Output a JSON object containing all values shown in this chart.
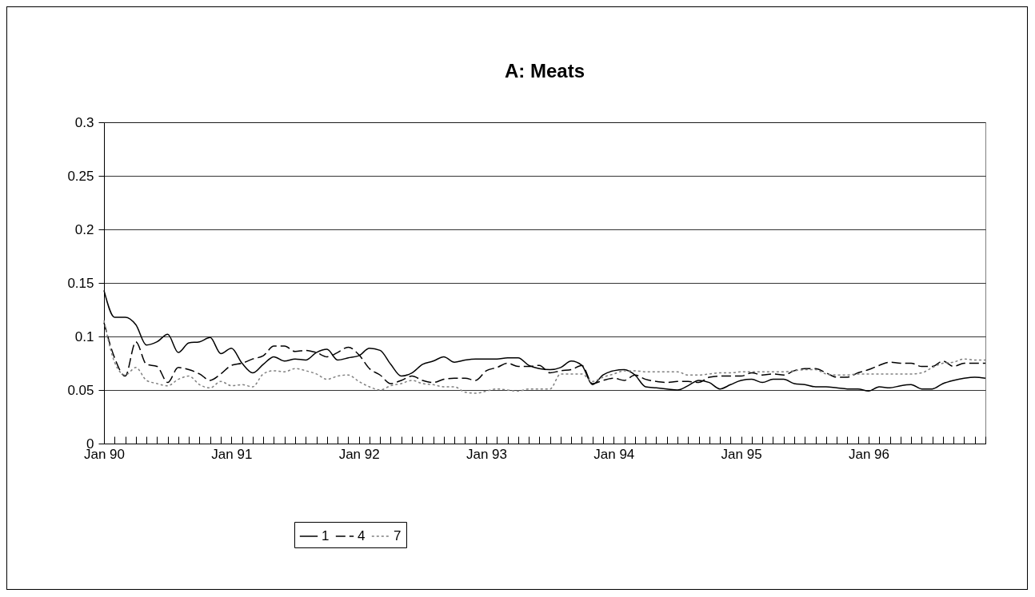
{
  "chart_data": {
    "type": "line",
    "title": "A:  Meats",
    "categories": [
      "Jan 90",
      null,
      null,
      null,
      null,
      null,
      null,
      null,
      null,
      null,
      null,
      null,
      "Jan 91",
      null,
      null,
      null,
      null,
      null,
      null,
      null,
      null,
      null,
      null,
      null,
      "Jan 92",
      null,
      null,
      null,
      null,
      null,
      null,
      null,
      null,
      null,
      null,
      null,
      "Jan 93",
      null,
      null,
      null,
      null,
      null,
      null,
      null,
      null,
      null,
      null,
      null,
      "Jan 94",
      null,
      null,
      null,
      null,
      null,
      null,
      null,
      null,
      null,
      null,
      null,
      "Jan 95",
      null,
      null,
      null,
      null,
      null,
      null,
      null,
      null,
      null,
      null,
      null,
      "Jan 96",
      null,
      null,
      null,
      null,
      null,
      null,
      null,
      null,
      null,
      null,
      null
    ],
    "series": [
      {
        "name": "1",
        "color": "#000000",
        "line_style": "solid",
        "values": [
          0.143,
          0.118,
          0.118,
          0.111,
          0.092,
          0.095,
          0.102,
          0.085,
          0.094,
          0.095,
          0.099,
          0.084,
          0.089,
          0.075,
          0.066,
          0.074,
          0.081,
          0.077,
          0.079,
          0.078,
          0.085,
          0.088,
          0.078,
          0.08,
          0.082,
          0.089,
          0.087,
          0.074,
          0.063,
          0.066,
          0.074,
          0.077,
          0.081,
          0.076,
          0.078,
          0.079,
          0.079,
          0.079,
          0.08,
          0.08,
          0.073,
          0.07,
          0.069,
          0.071,
          0.077,
          0.073,
          0.055,
          0.064,
          0.068,
          0.069,
          0.064,
          0.053,
          0.052,
          0.051,
          0.05,
          0.054,
          0.059,
          0.057,
          0.051,
          0.055,
          0.059,
          0.06,
          0.057,
          0.06,
          0.06,
          0.056,
          0.055,
          0.053,
          0.053,
          0.052,
          0.051,
          0.051,
          0.049,
          0.053,
          0.052,
          0.054,
          0.055,
          0.051,
          0.051,
          0.056,
          0.059,
          0.061,
          0.062,
          0.061
        ]
      },
      {
        "name": "4",
        "color": "#000000",
        "line_style": "dashed",
        "values": [
          0.113,
          0.08,
          0.063,
          0.095,
          0.074,
          0.072,
          0.057,
          0.071,
          0.069,
          0.065,
          0.059,
          0.065,
          0.073,
          0.075,
          0.079,
          0.082,
          0.091,
          0.091,
          0.086,
          0.087,
          0.085,
          0.081,
          0.085,
          0.09,
          0.083,
          0.07,
          0.064,
          0.056,
          0.059,
          0.063,
          0.059,
          0.057,
          0.06,
          0.061,
          0.061,
          0.059,
          0.068,
          0.071,
          0.075,
          0.072,
          0.072,
          0.073,
          0.066,
          0.068,
          0.069,
          0.073,
          0.056,
          0.059,
          0.061,
          0.059,
          0.064,
          0.06,
          0.058,
          0.057,
          0.058,
          0.058,
          0.057,
          0.062,
          0.063,
          0.063,
          0.063,
          0.066,
          0.064,
          0.065,
          0.064,
          0.068,
          0.07,
          0.07,
          0.066,
          0.062,
          0.062,
          0.066,
          0.069,
          0.073,
          0.076,
          0.075,
          0.075,
          0.072,
          0.072,
          0.077,
          0.072,
          0.075,
          0.075,
          0.075
        ]
      },
      {
        "name": "7",
        "color": "#808080",
        "line_style": "dotted",
        "values": [
          0.115,
          0.076,
          0.064,
          0.071,
          0.059,
          0.056,
          0.054,
          0.06,
          0.063,
          0.055,
          0.052,
          0.058,
          0.054,
          0.055,
          0.053,
          0.065,
          0.068,
          0.067,
          0.07,
          0.068,
          0.065,
          0.06,
          0.063,
          0.064,
          0.058,
          0.053,
          0.05,
          0.054,
          0.056,
          0.059,
          0.056,
          0.055,
          0.053,
          0.053,
          0.048,
          0.047,
          0.049,
          0.051,
          0.05,
          0.049,
          0.051,
          0.051,
          0.051,
          0.065,
          0.065,
          0.065,
          0.058,
          0.062,
          0.065,
          0.068,
          0.068,
          0.067,
          0.067,
          0.067,
          0.067,
          0.064,
          0.064,
          0.065,
          0.066,
          0.066,
          0.067,
          0.067,
          0.067,
          0.067,
          0.067,
          0.068,
          0.069,
          0.069,
          0.065,
          0.064,
          0.064,
          0.065,
          0.065,
          0.065,
          0.065,
          0.065,
          0.065,
          0.066,
          0.071,
          0.075,
          0.076,
          0.079,
          0.078,
          0.078
        ]
      }
    ],
    "ylim": [
      0,
      0.3
    ],
    "yticks": [
      0,
      0.05,
      0.1,
      0.15,
      0.2,
      0.25,
      0.3
    ],
    "grid": "y",
    "legend": "bottom"
  }
}
